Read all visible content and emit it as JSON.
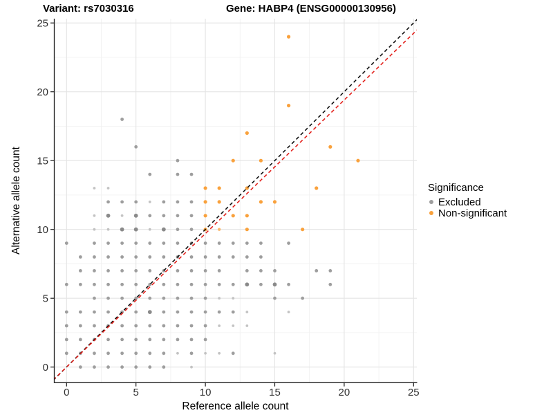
{
  "title": {
    "variant": "Variant: rs7030316",
    "gene": "Gene: HABP4 (ENSG00000130956)"
  },
  "axes": {
    "x_label": "Reference allele count",
    "y_label": "Alternative allele count",
    "x_ticks": [
      0,
      5,
      10,
      15,
      20,
      25
    ],
    "y_ticks": [
      0,
      5,
      10,
      15,
      20,
      25
    ],
    "minor_ticks": [
      2.5,
      7.5,
      12.5,
      17.5,
      22.5
    ]
  },
  "legend": {
    "title": "Significance",
    "items": [
      {
        "label": "Excluded",
        "color": "#9E9E9E"
      },
      {
        "label": "Non-significant",
        "color": "#F9A13C"
      }
    ]
  },
  "colors": {
    "grid_major": "#E4E4E4",
    "grid_minor": "#F1F1F1",
    "axis": "#1a1a1a",
    "tick_label": "#303030",
    "identity_line": "#111111",
    "expected_line": "#E3201B"
  },
  "chart_data": {
    "type": "scatter",
    "title": "Variant: rs7030316 — Gene: HABP4 (ENSG00000130956)",
    "xlabel": "Reference allele count",
    "ylabel": "Alternative allele count",
    "xlim": [
      0,
      25
    ],
    "ylim": [
      0,
      25
    ],
    "grid": "on",
    "legend_position": "right",
    "lines": [
      {
        "name": "identity",
        "slope": 1.0,
        "intercept": 0,
        "color": "#111111",
        "style": "dashed",
        "width": 1.6
      },
      {
        "name": "expected-ratio",
        "slope": 0.97,
        "intercept": 0,
        "color": "#E3201B",
        "style": "dashed",
        "width": 1.6
      }
    ],
    "series": [
      {
        "name": "Excluded",
        "color": "#9E9E9E",
        "size_styles": {
          "0": {
            "color": "#C3C3C3",
            "r": 1.9
          },
          "1": {
            "color": "#9E9E9E",
            "r": 2.4
          },
          "2": {
            "color": "#8A8A8A",
            "r": 2.9
          }
        },
        "points": [
          [
            1,
            0,
            1
          ],
          [
            2,
            0,
            1
          ],
          [
            3,
            0,
            1
          ],
          [
            4,
            0,
            1
          ],
          [
            5,
            0,
            1
          ],
          [
            6,
            0,
            1
          ],
          [
            7,
            0,
            1
          ],
          [
            9,
            0,
            0
          ],
          [
            0,
            1,
            1
          ],
          [
            1,
            1,
            1
          ],
          [
            2,
            1,
            1
          ],
          [
            3,
            1,
            1
          ],
          [
            4,
            1,
            1
          ],
          [
            5,
            1,
            1
          ],
          [
            6,
            1,
            1
          ],
          [
            7,
            1,
            1
          ],
          [
            8,
            1,
            0
          ],
          [
            9,
            1,
            1
          ],
          [
            10,
            1,
            0
          ],
          [
            11,
            1,
            0
          ],
          [
            12,
            1,
            1
          ],
          [
            15,
            1,
            0
          ],
          [
            0,
            2,
            1
          ],
          [
            1,
            2,
            1
          ],
          [
            2,
            2,
            1
          ],
          [
            3,
            2,
            1
          ],
          [
            4,
            2,
            1
          ],
          [
            5,
            2,
            1
          ],
          [
            6,
            2,
            1
          ],
          [
            7,
            2,
            1
          ],
          [
            8,
            2,
            1
          ],
          [
            9,
            2,
            1
          ],
          [
            10,
            2,
            1
          ],
          [
            0,
            3,
            1
          ],
          [
            1,
            3,
            1
          ],
          [
            2,
            3,
            1
          ],
          [
            3,
            3,
            1
          ],
          [
            4,
            3,
            1
          ],
          [
            5,
            3,
            1
          ],
          [
            6,
            3,
            1
          ],
          [
            7,
            3,
            1
          ],
          [
            8,
            3,
            1
          ],
          [
            9,
            3,
            1
          ],
          [
            10,
            3,
            1
          ],
          [
            11,
            3,
            0
          ],
          [
            12,
            3,
            0
          ],
          [
            13,
            3,
            0
          ],
          [
            0,
            4,
            1
          ],
          [
            1,
            4,
            1
          ],
          [
            2,
            4,
            1
          ],
          [
            3,
            4,
            1
          ],
          [
            4,
            4,
            1
          ],
          [
            5,
            4,
            1
          ],
          [
            6,
            4,
            2
          ],
          [
            7,
            4,
            1
          ],
          [
            8,
            4,
            1
          ],
          [
            9,
            4,
            1
          ],
          [
            10,
            4,
            1
          ],
          [
            11,
            4,
            1
          ],
          [
            12,
            4,
            1
          ],
          [
            13,
            4,
            0
          ],
          [
            16,
            4,
            0
          ],
          [
            2,
            5,
            1
          ],
          [
            3,
            5,
            1
          ],
          [
            4,
            5,
            1
          ],
          [
            5,
            5,
            1
          ],
          [
            6,
            5,
            1
          ],
          [
            7,
            5,
            1
          ],
          [
            8,
            5,
            1
          ],
          [
            9,
            5,
            1
          ],
          [
            10,
            5,
            1
          ],
          [
            11,
            5,
            0
          ],
          [
            12,
            5,
            0
          ],
          [
            15,
            5,
            1
          ],
          [
            17,
            5,
            1
          ],
          [
            0,
            6,
            1
          ],
          [
            1,
            6,
            1
          ],
          [
            2,
            6,
            1
          ],
          [
            3,
            6,
            1
          ],
          [
            4,
            6,
            1
          ],
          [
            5,
            6,
            1
          ],
          [
            6,
            6,
            1
          ],
          [
            7,
            6,
            1
          ],
          [
            8,
            6,
            1
          ],
          [
            9,
            6,
            1
          ],
          [
            10,
            6,
            1
          ],
          [
            11,
            6,
            1
          ],
          [
            12,
            6,
            1
          ],
          [
            13,
            6,
            2
          ],
          [
            14,
            6,
            1
          ],
          [
            15,
            6,
            2
          ],
          [
            16,
            6,
            1
          ],
          [
            19,
            6,
            1
          ],
          [
            1,
            7,
            1
          ],
          [
            2,
            7,
            1
          ],
          [
            3,
            7,
            1
          ],
          [
            4,
            7,
            1
          ],
          [
            5,
            7,
            1
          ],
          [
            6,
            7,
            1
          ],
          [
            7,
            7,
            1
          ],
          [
            8,
            7,
            1
          ],
          [
            9,
            7,
            1
          ],
          [
            10,
            7,
            1
          ],
          [
            11,
            7,
            1
          ],
          [
            13,
            7,
            1
          ],
          [
            14,
            7,
            1
          ],
          [
            15,
            7,
            1
          ],
          [
            18,
            7,
            1
          ],
          [
            19,
            7,
            1
          ],
          [
            1,
            8,
            1
          ],
          [
            2,
            8,
            1
          ],
          [
            3,
            8,
            1
          ],
          [
            4,
            8,
            1
          ],
          [
            5,
            8,
            1
          ],
          [
            6,
            8,
            1
          ],
          [
            7,
            8,
            1
          ],
          [
            8,
            8,
            1
          ],
          [
            9,
            8,
            1
          ],
          [
            10,
            8,
            1
          ],
          [
            11,
            8,
            1
          ],
          [
            12,
            8,
            1
          ],
          [
            13,
            8,
            1
          ],
          [
            14,
            8,
            1
          ],
          [
            0,
            9,
            1
          ],
          [
            2,
            9,
            1
          ],
          [
            3,
            9,
            1
          ],
          [
            4,
            9,
            1
          ],
          [
            5,
            9,
            1
          ],
          [
            6,
            9,
            1
          ],
          [
            7,
            9,
            1
          ],
          [
            8,
            9,
            1
          ],
          [
            9,
            9,
            1
          ],
          [
            10,
            9,
            1
          ],
          [
            11,
            9,
            1
          ],
          [
            12,
            9,
            1
          ],
          [
            13,
            9,
            1
          ],
          [
            14,
            9,
            1
          ],
          [
            16,
            9,
            1
          ],
          [
            2,
            10,
            0
          ],
          [
            3,
            10,
            0
          ],
          [
            4,
            10,
            2
          ],
          [
            5,
            10,
            2
          ],
          [
            6,
            10,
            0
          ],
          [
            7,
            10,
            2
          ],
          [
            8,
            10,
            1
          ],
          [
            9,
            10,
            1
          ],
          [
            2,
            11,
            0
          ],
          [
            3,
            11,
            2
          ],
          [
            4,
            11,
            0
          ],
          [
            5,
            11,
            2
          ],
          [
            6,
            11,
            1
          ],
          [
            7,
            11,
            1
          ],
          [
            8,
            11,
            1
          ],
          [
            9,
            11,
            1
          ],
          [
            3,
            12,
            1
          ],
          [
            4,
            12,
            1
          ],
          [
            5,
            12,
            1
          ],
          [
            6,
            12,
            0
          ],
          [
            7,
            12,
            1
          ],
          [
            8,
            12,
            1
          ],
          [
            9,
            12,
            1
          ],
          [
            2,
            13,
            0
          ],
          [
            3,
            13,
            0
          ],
          [
            6,
            14,
            1
          ],
          [
            8,
            14,
            1
          ],
          [
            9,
            14,
            1
          ],
          [
            8,
            15,
            1
          ],
          [
            5,
            16,
            1
          ],
          [
            4,
            18,
            1
          ]
        ]
      },
      {
        "name": "Non-significant",
        "color": "#F9A13C",
        "size_styles": {
          "0": {
            "color": "#FBB76B",
            "r": 2.15
          },
          "1": {
            "color": "#F9A13C",
            "r": 2.6
          },
          "2": {
            "color": "#F2941F",
            "r": 3.0
          }
        },
        "points": [
          [
            10,
            10,
            1
          ],
          [
            11,
            10,
            0
          ],
          [
            13,
            10,
            1
          ],
          [
            17,
            10,
            1
          ],
          [
            10,
            11,
            1
          ],
          [
            12,
            11,
            1
          ],
          [
            13,
            11,
            1
          ],
          [
            10,
            12,
            1
          ],
          [
            11,
            12,
            1
          ],
          [
            14,
            12,
            1
          ],
          [
            15,
            12,
            1
          ],
          [
            10,
            13,
            1
          ],
          [
            11,
            13,
            1
          ],
          [
            13,
            13,
            1
          ],
          [
            18,
            13,
            1
          ],
          [
            12,
            15,
            1
          ],
          [
            14,
            15,
            1
          ],
          [
            21,
            15,
            1
          ],
          [
            19,
            16,
            1
          ],
          [
            13,
            17,
            1
          ],
          [
            16,
            19,
            1
          ],
          [
            16,
            24,
            1
          ]
        ]
      }
    ]
  }
}
